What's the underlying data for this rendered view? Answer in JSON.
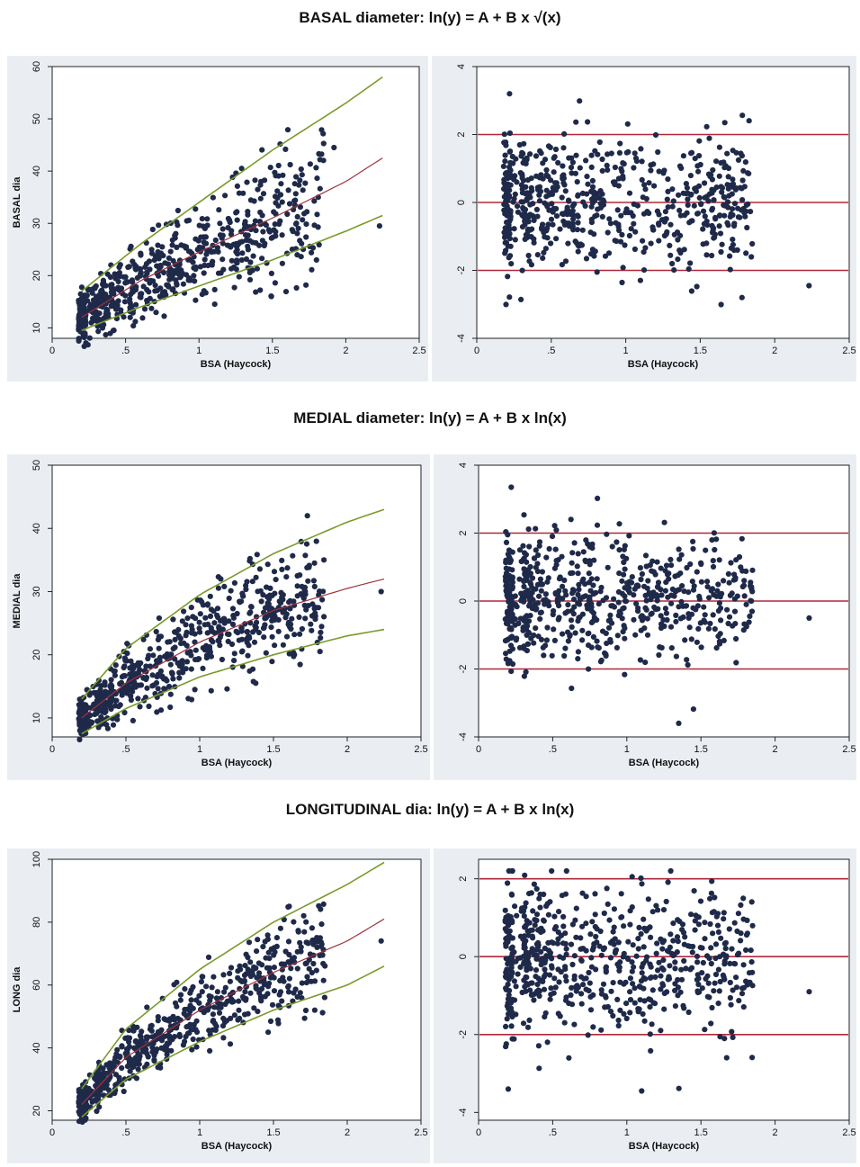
{
  "sections": [
    {
      "title": "BASAL diameter: ln(y) = A + B x √(x)"
    },
    {
      "title": "MEDIAL diameter: ln(y) = A + B x ln(x)"
    },
    {
      "title": "LONGITUDINAL dia:  ln(y) = A + B x ln(x)"
    }
  ],
  "colors": {
    "points": "#1f2a4a",
    "percentile_curves": "#7a9a2a",
    "median_curve": "#a0323a",
    "zscore_lines": "#b0283a",
    "panel_background": "#eaeef3",
    "plot_background": "#ffffff"
  },
  "chart_data": [
    {
      "id": "basal-scatter",
      "type": "scatter",
      "title": "",
      "xlabel": "BSA (Haycock)",
      "ylabel": "BASAL dia",
      "xlim": [
        0,
        2.5
      ],
      "ylim": [
        8,
        60
      ],
      "xticks": [
        0,
        0.5,
        1,
        1.5,
        2,
        2.5
      ],
      "xtick_labels": [
        "0",
        ".5",
        "1",
        "1.5",
        "2",
        "2.5"
      ],
      "yticks": [
        10,
        20,
        30,
        40,
        50,
        60
      ],
      "ytick_labels": [
        "10",
        "20",
        "30",
        "40",
        "50",
        "60"
      ],
      "grid": false,
      "model": "sqrt",
      "n_points": 650,
      "curves": [
        {
          "role": "upper",
          "x": [
            0.2,
            0.6,
            1.0,
            1.5,
            2.0,
            2.25
          ],
          "y": [
            17,
            26,
            34,
            44,
            53,
            58
          ]
        },
        {
          "role": "median",
          "x": [
            0.2,
            0.6,
            1.0,
            1.5,
            2.0,
            2.25
          ],
          "y": [
            12,
            19,
            24.5,
            31,
            38,
            42.5
          ]
        },
        {
          "role": "lower",
          "x": [
            0.2,
            0.6,
            1.0,
            1.5,
            2.0,
            2.25
          ],
          "y": [
            9.5,
            14,
            18,
            23,
            28.5,
            31.5
          ]
        }
      ],
      "outliers": [
        {
          "x": 2.23,
          "y": 29.5
        },
        {
          "x": 1.92,
          "y": 44.5
        },
        {
          "x": 1.8,
          "y": 23
        }
      ]
    },
    {
      "id": "basal-zscore",
      "type": "scatter",
      "title": "",
      "xlabel": "BSA (Haycock)",
      "ylabel": "",
      "xlim": [
        0,
        2.5
      ],
      "ylim": [
        -4,
        4
      ],
      "xticks": [
        0,
        0.5,
        1,
        1.5,
        2,
        2.5
      ],
      "xtick_labels": [
        "0",
        ".5",
        "1",
        "1.5",
        "2",
        "2.5"
      ],
      "yticks": [
        -4,
        -2,
        0,
        2,
        4
      ],
      "ytick_labels": [
        "-4",
        "-2",
        "0",
        "2",
        "4"
      ],
      "grid": false,
      "reference_lines": [
        -2,
        0,
        2
      ],
      "n_points": 650,
      "outliers": [
        {
          "x": 2.23,
          "y": -2.45
        },
        {
          "x": 0.22,
          "y": 3.2
        },
        {
          "x": 1.78,
          "y": -2.8
        }
      ]
    },
    {
      "id": "medial-scatter",
      "type": "scatter",
      "title": "",
      "xlabel": "BSA (Haycock)",
      "ylabel": "MEDIAL dia",
      "xlim": [
        0,
        2.5
      ],
      "ylim": [
        7,
        50
      ],
      "xticks": [
        0,
        0.5,
        1,
        1.5,
        2,
        2.5
      ],
      "xtick_labels": [
        "0",
        ".5",
        "1",
        "1.5",
        "2",
        "2.5"
      ],
      "yticks": [
        10,
        20,
        30,
        40,
        50
      ],
      "ytick_labels": [
        "10",
        "20",
        "30",
        "40",
        "50"
      ],
      "grid": false,
      "model": "log",
      "n_points": 650,
      "curves": [
        {
          "role": "upper",
          "x": [
            0.2,
            0.5,
            1.0,
            1.5,
            2.0,
            2.25
          ],
          "y": [
            13,
            21,
            29.5,
            36,
            41,
            43
          ]
        },
        {
          "role": "median",
          "x": [
            0.2,
            0.5,
            1.0,
            1.5,
            2.0,
            2.25
          ],
          "y": [
            10,
            15.5,
            22,
            27,
            30.5,
            32
          ]
        },
        {
          "role": "lower",
          "x": [
            0.2,
            0.5,
            1.0,
            1.5,
            2.0,
            2.25
          ],
          "y": [
            7.5,
            11.5,
            16.5,
            20,
            23,
            24
          ]
        }
      ],
      "outliers": [
        {
          "x": 2.23,
          "y": 30
        },
        {
          "x": 1.73,
          "y": 42
        },
        {
          "x": 1.38,
          "y": 15.5
        }
      ]
    },
    {
      "id": "medial-zscore",
      "type": "scatter",
      "title": "",
      "xlabel": "BSA (Haycock)",
      "ylabel": "",
      "xlim": [
        0,
        2.5
      ],
      "ylim": [
        -4,
        4
      ],
      "xticks": [
        0,
        0.5,
        1,
        1.5,
        2,
        2.5
      ],
      "xtick_labels": [
        "0",
        ".5",
        "1",
        "1.5",
        "2",
        "2.5"
      ],
      "yticks": [
        -4,
        -2,
        0,
        2,
        4
      ],
      "ytick_labels": [
        "-4",
        "-2",
        "0",
        "2",
        "4"
      ],
      "grid": false,
      "reference_lines": [
        -2,
        0,
        2
      ],
      "n_points": 650,
      "outliers": [
        {
          "x": 2.23,
          "y": -0.5
        },
        {
          "x": 0.22,
          "y": 3.35
        },
        {
          "x": 1.35,
          "y": -3.6
        }
      ]
    },
    {
      "id": "long-scatter",
      "type": "scatter",
      "title": "",
      "xlabel": "BSA (Haycock)",
      "ylabel": "LONG dia",
      "xlim": [
        0,
        2.5
      ],
      "ylim": [
        17,
        100
      ],
      "xticks": [
        0,
        0.5,
        1,
        1.5,
        2,
        2.5
      ],
      "xtick_labels": [
        "0",
        ".5",
        "1",
        "1.5",
        "2",
        "2.5"
      ],
      "yticks": [
        20,
        40,
        60,
        80,
        100
      ],
      "ytick_labels": [
        "20",
        "40",
        "60",
        "80",
        "100"
      ],
      "grid": false,
      "model": "log",
      "n_points": 650,
      "curves": [
        {
          "role": "upper",
          "x": [
            0.2,
            0.5,
            1.0,
            1.5,
            2.0,
            2.25
          ],
          "y": [
            27,
            46,
            65,
            80,
            92,
            99
          ]
        },
        {
          "role": "median",
          "x": [
            0.2,
            0.5,
            1.0,
            1.5,
            2.0,
            2.25
          ],
          "y": [
            22,
            37,
            52,
            64,
            74,
            81
          ]
        },
        {
          "role": "lower",
          "x": [
            0.2,
            0.5,
            1.0,
            1.5,
            2.0,
            2.25
          ],
          "y": [
            18,
            30,
            42,
            52,
            60,
            66
          ]
        }
      ],
      "outliers": [
        {
          "x": 2.23,
          "y": 74
        },
        {
          "x": 1.78,
          "y": 52
        },
        {
          "x": 0.2,
          "y": 17.5
        }
      ]
    },
    {
      "id": "long-zscore",
      "type": "scatter",
      "title": "",
      "xlabel": "BSA (Haycock)",
      "ylabel": "",
      "xlim": [
        0,
        2.5
      ],
      "ylim": [
        -4.2,
        2.5
      ],
      "xticks": [
        0,
        0.5,
        1,
        1.5,
        2,
        2.5
      ],
      "xtick_labels": [
        "0",
        ".5",
        "1",
        "1.5",
        "2",
        "2.5"
      ],
      "yticks": [
        -4,
        -2,
        0,
        2
      ],
      "ytick_labels": [
        "-4",
        "-2",
        "0",
        "2"
      ],
      "grid": false,
      "reference_lines": [
        -2,
        0,
        2
      ],
      "n_points": 650,
      "outliers": [
        {
          "x": 2.23,
          "y": -0.9
        },
        {
          "x": 0.2,
          "y": -3.4
        },
        {
          "x": 1.1,
          "y": -3.45
        }
      ]
    }
  ]
}
